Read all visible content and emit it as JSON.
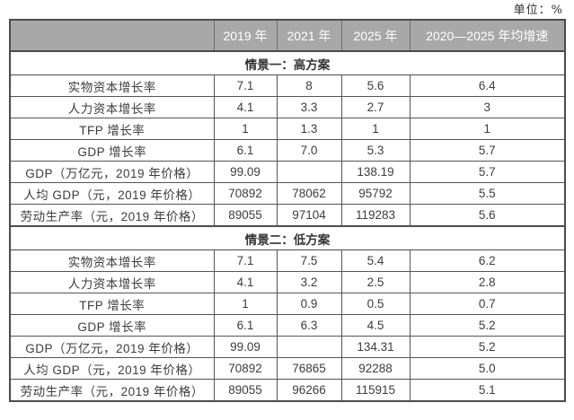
{
  "unit_note": "单位：%",
  "colors": {
    "header_bg": "#a8a8a8",
    "header_text": "#ffffff",
    "body_text": "#3d3d3d",
    "border": "#555555"
  },
  "table": {
    "columns": [
      "",
      "2019 年",
      "2021 年",
      "2025 年",
      "2020—2025 年均增速"
    ],
    "sections": [
      {
        "title": "情景一：高方案",
        "rows": [
          {
            "label": "实物资本增长率",
            "values": [
              "7.1",
              "8",
              "5.6",
              "6.4"
            ]
          },
          {
            "label": "人力资本增长率",
            "values": [
              "4.1",
              "3.3",
              "2.7",
              "3"
            ]
          },
          {
            "label": "TFP 增长率",
            "values": [
              "1",
              "1.3",
              "1",
              "1"
            ]
          },
          {
            "label": "GDP 增长率",
            "values": [
              "6.1",
              "7.0",
              "5.3",
              "5.7"
            ]
          },
          {
            "label": "GDP（万亿元，2019 年价格）",
            "values": [
              "99.09",
              "",
              "138.19",
              "5.7"
            ]
          },
          {
            "label": "人均 GDP（元，2019 年价格）",
            "values": [
              "70892",
              "78062",
              "95792",
              "5.5"
            ]
          },
          {
            "label": "劳动生产率（元，2019 年价格）",
            "values": [
              "89055",
              "97104",
              "119283",
              "5.6"
            ]
          }
        ]
      },
      {
        "title": "情景二：低方案",
        "rows": [
          {
            "label": "实物资本增长率",
            "values": [
              "7.1",
              "7.5",
              "5.4",
              "6.2"
            ]
          },
          {
            "label": "人力资本增长率",
            "values": [
              "4.1",
              "3.2",
              "2.5",
              "2.8"
            ]
          },
          {
            "label": "TFP 增长率",
            "values": [
              "1",
              "0.9",
              "0.5",
              "0.7"
            ]
          },
          {
            "label": "GDP 增长率",
            "values": [
              "6.1",
              "6.3",
              "4.5",
              "5.2"
            ]
          },
          {
            "label": "GDP（万亿元，2019 年价格）",
            "values": [
              "99.09",
              "",
              "134.31",
              "5.2"
            ]
          },
          {
            "label": "人均 GDP（元，2019 年价格）",
            "values": [
              "70892",
              "76865",
              "92288",
              "5.0"
            ]
          },
          {
            "label": "劳动生产率（元，2019 年价格）",
            "values": [
              "89055",
              "96266",
              "115915",
              "5.1"
            ]
          }
        ]
      }
    ]
  }
}
